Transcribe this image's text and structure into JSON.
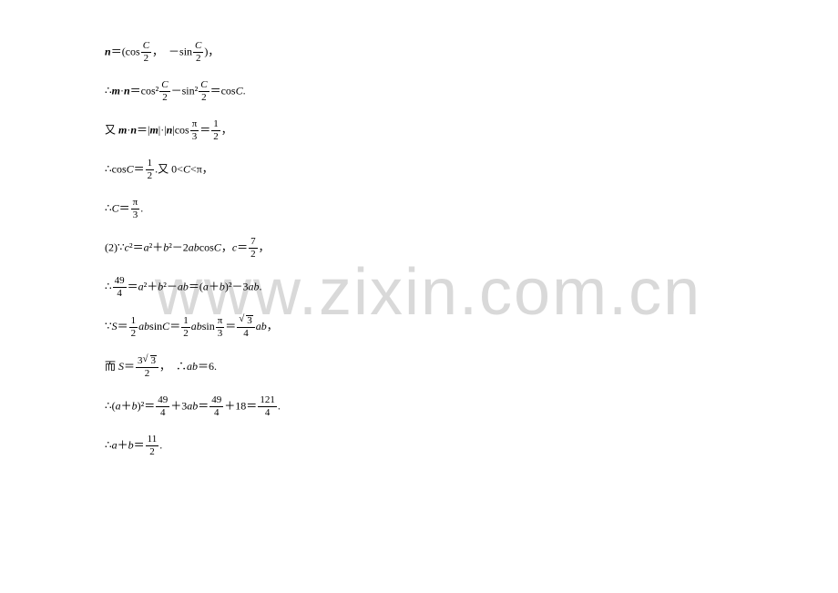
{
  "watermark": "www.zixin.com.cn",
  "lines": {
    "l1_pre": "n",
    "l1_mid": "＝(cos",
    "l1_f1n": "C",
    "l1_f1d": "2",
    "l1_comma": "，　－sin",
    "l1_f2n": "C",
    "l1_f2d": "2",
    "l1_end": ")，",
    "l2_pre": "∴",
    "l2_m": "m",
    "l2_dot1": "·",
    "l2_n": "n",
    "l2_eq": "＝cos²",
    "l2_f1n": "C",
    "l2_f1d": "2",
    "l2_minus": "－sin²",
    "l2_f2n": "C",
    "l2_f2d": "2",
    "l2_end": "＝cos",
    "l2_C": "C",
    "l2_period": ".",
    "l3_pre": "又 ",
    "l3_m": "m",
    "l3_dot": "·",
    "l3_n": "n",
    "l3_eq": "＝|",
    "l3_m2": "m",
    "l3_mid": "|·|",
    "l3_n2": "n",
    "l3_cos": "|cos",
    "l3_f1n": "π",
    "l3_f1d": "3",
    "l3_eq2": "＝",
    "l3_f2n": "1",
    "l3_f2d": "2",
    "l3_end": "，",
    "l4_pre": "∴cos",
    "l4_C": "C",
    "l4_eq": "＝",
    "l4_fn": "1",
    "l4_fd": "2",
    "l4_end": ".又 0<",
    "l4_C2": "C",
    "l4_end2": "<π，",
    "l5_pre": "∴",
    "l5_C": "C",
    "l5_eq": "＝",
    "l5_fn": "π",
    "l5_fd": "3",
    "l5_end": ".",
    "l6_pre": "(2)∵",
    "l6_c": "c",
    "l6_sq": "²＝",
    "l6_a": "a",
    "l6_sq2": "²＋",
    "l6_b": "b",
    "l6_sq3": "²－2",
    "l6_ab": "ab",
    "l6_cos": "cos",
    "l6_C": "C",
    "l6_comma": "，",
    "l6_c2": "c",
    "l6_eq": "＝",
    "l6_fn": "7",
    "l6_fd": "2",
    "l6_end": "，",
    "l7_pre": "∴",
    "l7_fn": "49",
    "l7_fd": "4",
    "l7_eq": "＝",
    "l7_a": "a",
    "l7_sq": "²＋",
    "l7_b": "b",
    "l7_sq2": "²－",
    "l7_ab": "ab",
    "l7_eq2": "＝(",
    "l7_a2": "a",
    "l7_plus": "＋",
    "l7_b2": "b",
    "l7_sq3": ")²－3",
    "l7_ab2": "ab",
    "l7_end": ".",
    "l8_pre": "∵",
    "l8_S": "S",
    "l8_eq": "＝",
    "l8_f1n": "1",
    "l8_f1d": "2",
    "l8_ab": "ab",
    "l8_sin": "sin",
    "l8_C": "C",
    "l8_eq2": "＝",
    "l8_f2n": "1",
    "l8_f2d": "2",
    "l8_ab2": "ab",
    "l8_sin2": "sin",
    "l8_f3n": "π",
    "l8_f3d": "3",
    "l8_eq3": "＝",
    "l8_f4n": "",
    "l8_f4d": "4",
    "l8_ab3": "ab",
    "l8_end": "，",
    "l9_pre": "而 ",
    "l9_S": "S",
    "l9_eq": "＝",
    "l9_fn": "",
    "l9_fd": "2",
    "l9_comma": "，　∴",
    "l9_ab": "ab",
    "l9_eq2": "＝6.",
    "l10_pre": "∴(",
    "l10_a": "a",
    "l10_plus": "＋",
    "l10_b": "b",
    "l10_sq": ")²＝",
    "l10_f1n": "49",
    "l10_f1d": "4",
    "l10_plus2": "＋3",
    "l10_ab": "ab",
    "l10_eq": "＝",
    "l10_f2n": "49",
    "l10_f2d": "4",
    "l10_plus3": "＋18＝",
    "l10_f3n": "121",
    "l10_f3d": "4",
    "l10_end": ".",
    "l11_pre": "∴",
    "l11_a": "a",
    "l11_plus": "＋",
    "l11_b": "b",
    "l11_eq": "＝",
    "l11_fn": "11",
    "l11_fd": "2",
    "l11_end": "."
  },
  "style": {
    "text_color": "#000000",
    "watermark_color": "#d9d9d9",
    "bg_color": "#ffffff",
    "font_size_pt": 12,
    "watermark_font_size": 72
  }
}
